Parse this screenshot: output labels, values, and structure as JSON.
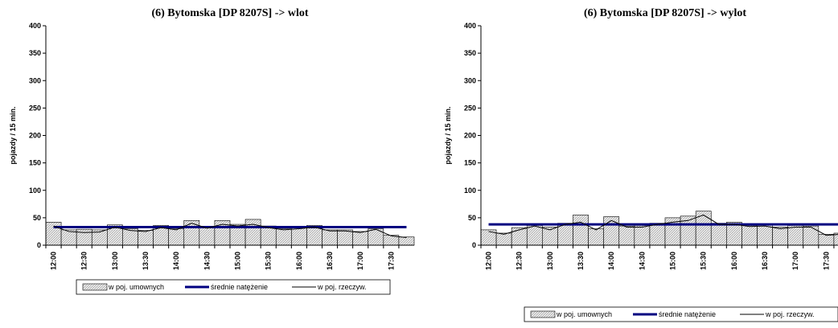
{
  "chart_data": [
    {
      "type": "bar",
      "title": "(6) Bytomska [DP 8207S] -> wlot",
      "ylabel": "pojazdy / 15 min.",
      "categories": [
        "12:00",
        null,
        "12:30",
        null,
        "13:00",
        null,
        "13:30",
        null,
        "14:00",
        null,
        "14:30",
        null,
        "15:00",
        null,
        "15:30",
        null,
        "16:00",
        null,
        "16:30",
        null,
        "17:00",
        null,
        "17:30",
        null
      ],
      "ylim": [
        0,
        400
      ],
      "yticks": [
        0,
        50,
        100,
        150,
        200,
        250,
        300,
        350,
        400
      ],
      "series": [
        {
          "name": "w poj. umownych",
          "type": "bar",
          "color": "#d9d9d9",
          "values": [
            42,
            28,
            29,
            28,
            37,
            30,
            27,
            36,
            30,
            45,
            33,
            45,
            38,
            47,
            35,
            30,
            33,
            36,
            28,
            28,
            25,
            30,
            18,
            15
          ]
        },
        {
          "name": "średnie natężenie",
          "type": "line",
          "color": "#000080",
          "values": [
            33,
            33,
            33,
            33,
            33,
            33,
            33,
            33,
            33,
            33,
            33,
            33,
            33,
            33,
            33,
            33,
            33,
            33,
            33,
            33,
            33,
            33,
            33,
            33
          ]
        },
        {
          "name": "w poj. rzeczyw.",
          "type": "line",
          "color": "#000000",
          "values": [
            35,
            25,
            23,
            24,
            33,
            27,
            25,
            32,
            28,
            40,
            31,
            38,
            35,
            38,
            32,
            28,
            30,
            33,
            26,
            26,
            23,
            29,
            17,
            14
          ]
        }
      ]
    },
    {
      "type": "bar",
      "title": "(6) Bytomska [DP 8207S] -> wylot",
      "ylabel": "pojazdy / 15 min.",
      "categories": [
        "12:00",
        null,
        "12:30",
        null,
        "13:00",
        null,
        "13:30",
        null,
        "14:00",
        null,
        "14:30",
        null,
        "15:00",
        null,
        "15:30",
        null,
        "16:00",
        null,
        "16:30",
        null,
        "17:00",
        null,
        "17:30",
        null
      ],
      "ylim": [
        0,
        400
      ],
      "yticks": [
        0,
        50,
        100,
        150,
        200,
        250,
        300,
        350,
        400
      ],
      "series": [
        {
          "name": "w poj. umownych",
          "type": "bar",
          "color": "#d9d9d9",
          "values": [
            28,
            22,
            32,
            36,
            33,
            40,
            55,
            30,
            52,
            35,
            36,
            40,
            50,
            53,
            62,
            40,
            42,
            36,
            38,
            33,
            36,
            35,
            20,
            22
          ]
        },
        {
          "name": "średnie natężenie",
          "type": "line",
          "color": "#000080",
          "values": [
            38,
            38,
            38,
            38,
            38,
            38,
            38,
            38,
            38,
            38,
            38,
            38,
            38,
            38,
            38,
            38,
            38,
            38,
            38,
            38,
            38,
            38,
            38,
            38
          ]
        },
        {
          "name": "w poj. rzeczyw.",
          "type": "line",
          "color": "#000000",
          "values": [
            25,
            20,
            28,
            35,
            28,
            38,
            42,
            28,
            45,
            33,
            33,
            38,
            42,
            45,
            55,
            38,
            38,
            34,
            35,
            30,
            33,
            33,
            18,
            20
          ]
        }
      ]
    }
  ]
}
